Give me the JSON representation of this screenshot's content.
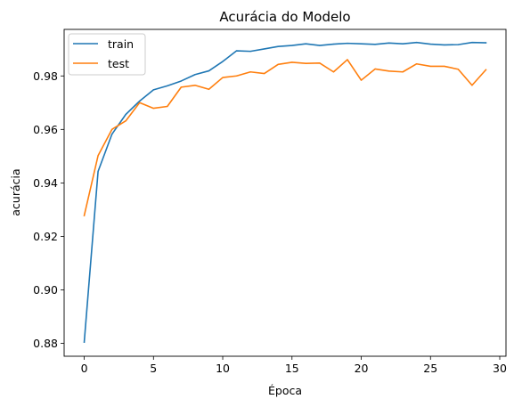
{
  "chart_data": {
    "type": "line",
    "title": "Acurácia do Modelo",
    "xlabel": "Época",
    "ylabel": "acurácia",
    "xlim": [
      -1.45,
      30.45
    ],
    "ylim": [
      0.8752,
      0.9974
    ],
    "xticks": [
      0,
      5,
      10,
      15,
      20,
      25,
      30
    ],
    "yticks": [
      0.88,
      0.9,
      0.92,
      0.94,
      0.96,
      0.98
    ],
    "xtick_labels": [
      "0",
      "5",
      "10",
      "15",
      "20",
      "25",
      "30"
    ],
    "ytick_labels": [
      "0.88",
      "0.90",
      "0.92",
      "0.94",
      "0.96",
      "0.98"
    ],
    "grid": false,
    "legend_position": "upper-left",
    "x": [
      0,
      1,
      2,
      3,
      4,
      5,
      6,
      7,
      8,
      9,
      10,
      11,
      12,
      13,
      14,
      15,
      16,
      17,
      18,
      19,
      20,
      21,
      22,
      23,
      24,
      25,
      26,
      27,
      28,
      29
    ],
    "series": [
      {
        "name": "train",
        "color": "#1f77b4",
        "values": [
          0.8805,
          0.9443,
          0.9582,
          0.9656,
          0.9706,
          0.9748,
          0.9763,
          0.9781,
          0.9805,
          0.9819,
          0.9854,
          0.9894,
          0.9892,
          0.9901,
          0.991,
          0.9914,
          0.992,
          0.9914,
          0.9919,
          0.9922,
          0.992,
          0.9918,
          0.9923,
          0.992,
          0.9925,
          0.9919,
          0.9916,
          0.9917,
          0.9925,
          0.9924
        ]
      },
      {
        "name": "test",
        "color": "#ff7f0e",
        "values": [
          0.9278,
          0.9502,
          0.96,
          0.9632,
          0.97,
          0.9679,
          0.9686,
          0.9758,
          0.9765,
          0.975,
          0.9794,
          0.98,
          0.9815,
          0.9809,
          0.9843,
          0.9851,
          0.9847,
          0.9848,
          0.9815,
          0.9861,
          0.9784,
          0.9826,
          0.9818,
          0.9815,
          0.9845,
          0.9836,
          0.9836,
          0.9825,
          0.9765,
          0.9823
        ]
      }
    ]
  }
}
